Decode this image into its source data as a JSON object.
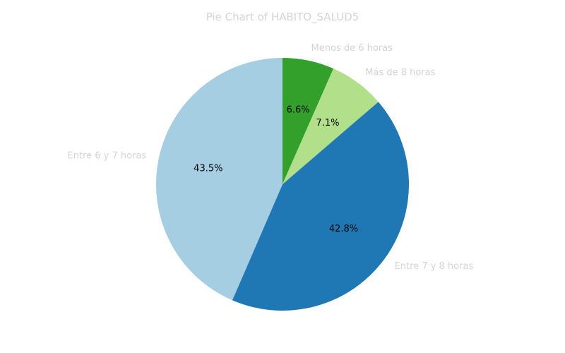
{
  "chart_data": {
    "type": "pie",
    "title": "Pie Chart of HABITO_SALUD5",
    "slices": [
      {
        "label": "Menos de 6 horas",
        "value": 6.6,
        "pct_label": "6.6%",
        "color": "#33a02c"
      },
      {
        "label": "Más de 8 horas",
        "value": 7.1,
        "pct_label": "7.1%",
        "color": "#b2df8a"
      },
      {
        "label": "Entre 7 y 8 horas",
        "value": 42.8,
        "pct_label": "42.8%",
        "color": "#1f78b4"
      },
      {
        "label": "Entre 6 y 7 horas",
        "value": 43.5,
        "pct_label": "43.5%",
        "color": "#a6cee3"
      }
    ],
    "start_angle_deg": 90,
    "direction": "clockwise",
    "legend": "none"
  }
}
